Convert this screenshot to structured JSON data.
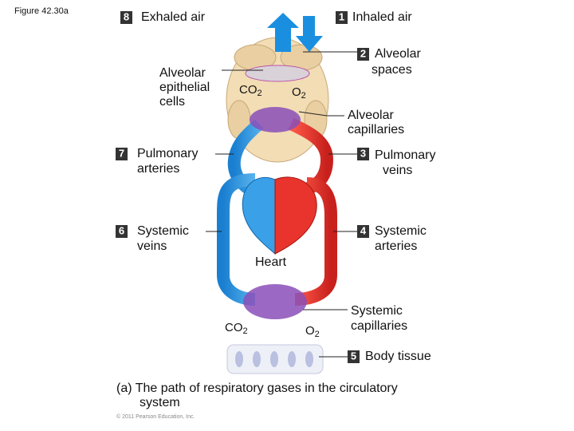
{
  "figure_label": "Figure 42.30a",
  "steps": [
    {
      "number": "8",
      "lines": [
        "Exhaled air"
      ]
    },
    {
      "number": "1",
      "lines": [
        "Inhaled air"
      ]
    },
    {
      "number": "2",
      "lines": [
        "Alveolar",
        "spaces"
      ]
    },
    {
      "number": "7",
      "lines": [
        "Pulmonary",
        "arteries"
      ]
    },
    {
      "number": "3",
      "lines": [
        "Pulmonary",
        "veins"
      ]
    },
    {
      "number": "6",
      "lines": [
        "Systemic",
        "veins"
      ]
    },
    {
      "number": "4",
      "lines": [
        "Systemic",
        "arteries"
      ]
    },
    {
      "number": "5",
      "lines": [
        "Body tissue"
      ]
    }
  ],
  "labels": {
    "alveolar_epithelial_cells": [
      "Alveolar",
      "epithelial",
      "cells"
    ],
    "alveolar_capillaries": [
      "Alveolar",
      "capillaries"
    ],
    "heart": "Heart",
    "systemic_capillaries": [
      "Systemic",
      "capillaries"
    ]
  },
  "gases": {
    "lung_co2": {
      "formula": "CO",
      "subscript": "2"
    },
    "lung_o2": {
      "formula": "O",
      "subscript": "2"
    },
    "tissue_co2": {
      "formula": "CO",
      "subscript": "2"
    },
    "tissue_o2": {
      "formula": "O",
      "subscript": "2"
    }
  },
  "caption": [
    "(a) The path of respiratory gases in the circulatory",
    "system"
  ],
  "copyright": "© 2011 Pearson Education, Inc."
}
